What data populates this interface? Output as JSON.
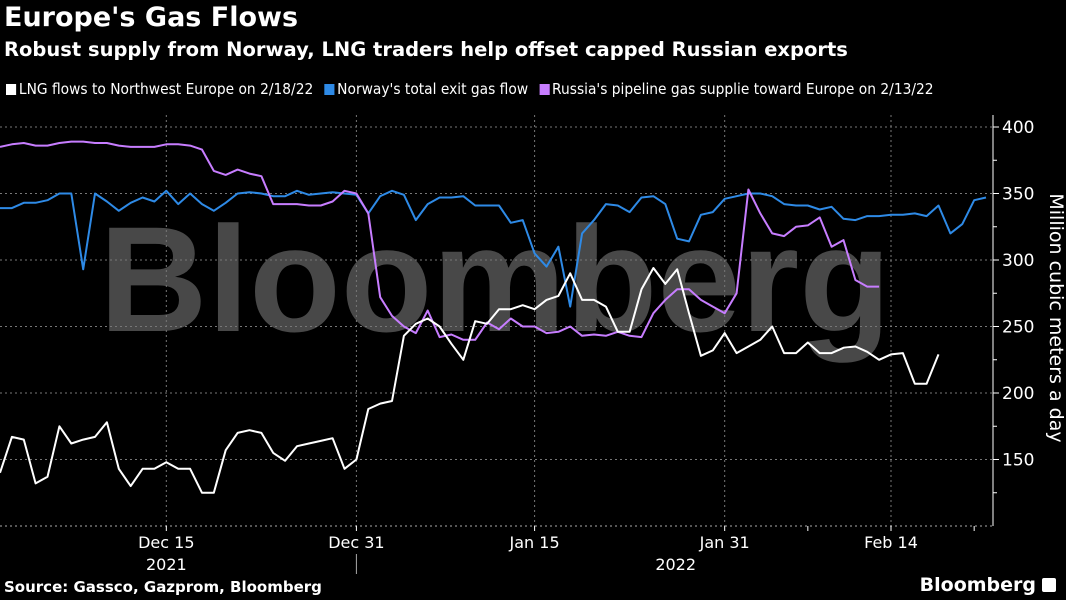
{
  "header": {
    "title": "Europe's Gas Flows",
    "subtitle": "Robust supply from Norway, LNG traders help offset capped Russian exports"
  },
  "footer": {
    "source": "Source: Gassco, Gazprom, Bloomberg",
    "logo": "Bloomberg",
    "watermark": "Bloomberg"
  },
  "chart_data": {
    "type": "line",
    "title": "Europe's Gas Flows",
    "subtitle": "Robust supply from Norway, LNG traders help offset capped Russian exports",
    "ylabel": "Million cubic meters a day",
    "ylim": [
      100,
      400
    ],
    "yticks": [
      150,
      200,
      250,
      300,
      350,
      400
    ],
    "ytick_labels": [
      "150",
      "200",
      "250",
      "300",
      "350",
      "400"
    ],
    "xlim": [
      "2021-12-01",
      "2022-02-23"
    ],
    "xticks": [
      {
        "date": "2021-12-15",
        "label": "Dec 15"
      },
      {
        "date": "2021-12-31",
        "label": "Dec 31"
      },
      {
        "date": "2022-01-15",
        "label": "Jan 15"
      },
      {
        "date": "2022-01-31",
        "label": "Jan 31"
      },
      {
        "date": "2022-02-14",
        "label": "Feb 14"
      }
    ],
    "minor_xticks": [
      "2022-02-07",
      "2022-02-21"
    ],
    "year_labels": [
      {
        "label": "2021",
        "under": "2021-12-15"
      },
      {
        "label": "2022",
        "under": "2022-01-31"
      }
    ],
    "grid": true,
    "legend_position": "top-left",
    "x_start": "2021-12-01",
    "x_step": "1 day",
    "series": [
      {
        "name": "LNG flows to Northwest Europe on 2/18/22",
        "color": "#ffffff",
        "values": [
          140,
          167,
          165,
          132,
          137,
          175,
          162,
          165,
          167,
          178,
          143,
          130,
          143,
          143,
          148,
          143,
          143,
          125,
          125,
          157,
          170,
          172,
          170,
          155,
          149,
          160,
          162,
          164,
          166,
          143,
          150,
          188,
          192,
          194,
          243,
          252,
          256,
          250,
          237,
          225,
          254,
          252,
          263,
          263,
          266,
          263,
          270,
          273,
          290,
          270,
          270,
          265,
          246,
          246,
          278,
          294,
          282,
          293,
          260,
          228,
          232,
          245,
          230,
          235,
          240,
          250,
          230,
          230,
          238,
          230,
          230,
          234,
          235,
          231,
          225,
          229,
          230,
          207,
          207,
          229
        ]
      },
      {
        "name": "Norway's total exit gas flow",
        "color": "#2e8ae6",
        "values": [
          339,
          339,
          343,
          343,
          345,
          350,
          350,
          293,
          350,
          344,
          337,
          343,
          347,
          344,
          352,
          342,
          350,
          342,
          337,
          343,
          350,
          351,
          350,
          348,
          348,
          352,
          349,
          350,
          351,
          350,
          349,
          335,
          348,
          352,
          349,
          330,
          342,
          347,
          347,
          348,
          341,
          341,
          341,
          328,
          330,
          305,
          295,
          310,
          265,
          320,
          330,
          342,
          341,
          336,
          347,
          348,
          342,
          316,
          314,
          334,
          336,
          346,
          348,
          350,
          350,
          348,
          342,
          341,
          341,
          338,
          340,
          331,
          330,
          333,
          333,
          334,
          334,
          335,
          333,
          341,
          320,
          327,
          345,
          347
        ]
      },
      {
        "name": "Russia's pipeline gas supplie toward Europe on 2/13/22",
        "color": "#c77dff",
        "values": [
          385,
          387,
          388,
          386,
          386,
          388,
          389,
          389,
          388,
          388,
          386,
          385,
          385,
          385,
          387,
          387,
          386,
          383,
          367,
          364,
          368,
          365,
          363,
          342,
          342,
          342,
          341,
          341,
          344,
          352,
          350,
          335,
          272,
          258,
          250,
          245,
          262,
          242,
          244,
          240,
          240,
          253,
          248,
          256,
          250,
          250,
          245,
          246,
          250,
          243,
          244,
          243,
          246,
          243,
          242,
          260,
          270,
          278,
          278,
          270,
          265,
          260,
          275,
          353,
          335,
          320,
          318,
          325,
          326,
          332,
          310,
          315,
          285,
          280,
          280
        ]
      }
    ]
  }
}
